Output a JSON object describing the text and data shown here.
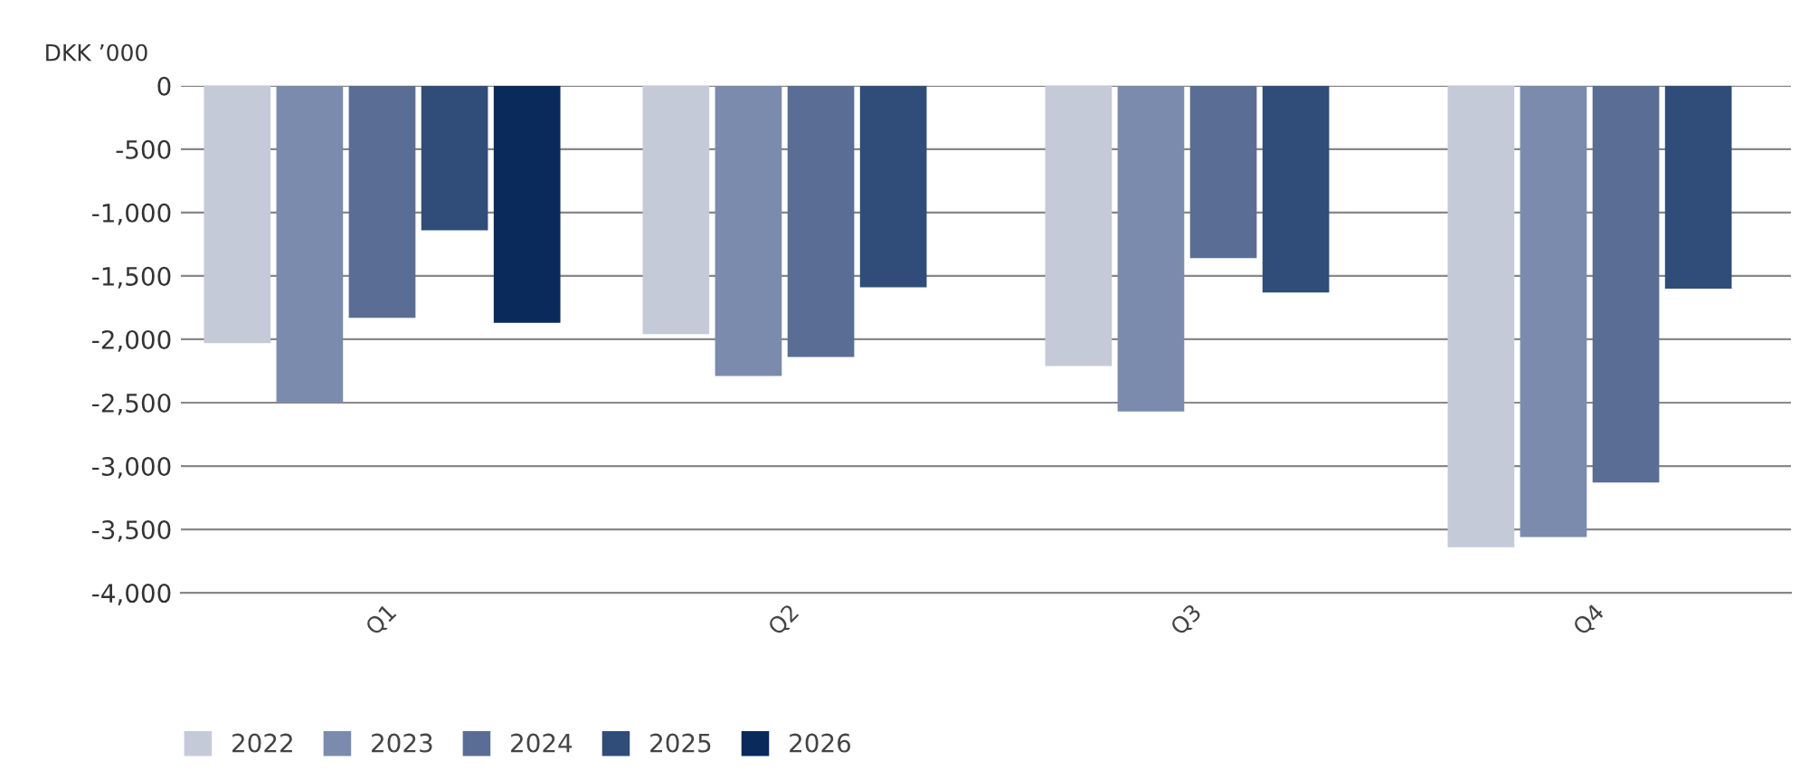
{
  "chart_data": {
    "type": "bar",
    "ylabel": "DKK ’000",
    "categories": [
      "Q1",
      "Q2",
      "Q3",
      "Q4"
    ],
    "series": [
      {
        "name": "2022",
        "color": "#c5cad9",
        "values": [
          -2030,
          -1960,
          -2210,
          -3640
        ]
      },
      {
        "name": "2023",
        "color": "#7b8bad",
        "values": [
          -2500,
          -2290,
          -2570,
          -3560
        ]
      },
      {
        "name": "2024",
        "color": "#5a6d94",
        "values": [
          -1830,
          -2140,
          -1360,
          -3130
        ]
      },
      {
        "name": "2025",
        "color": "#2f4d78",
        "values": [
          -1140,
          -1590,
          -1630,
          -1600
        ]
      },
      {
        "name": "2026",
        "color": "#0a2a5c",
        "values": [
          -1870,
          null,
          null,
          null
        ]
      }
    ],
    "ylim": [
      -4000,
      0
    ],
    "yticks": [
      {
        "value": -4000,
        "label": "-4,000"
      },
      {
        "value": -3500,
        "label": "-3,500"
      },
      {
        "value": -3000,
        "label": "-3,000"
      },
      {
        "value": -2500,
        "label": "-2,500"
      },
      {
        "value": -2000,
        "label": "-2,000"
      },
      {
        "value": -1500,
        "label": "-1,500"
      },
      {
        "value": -1000,
        "label": "-1,000"
      },
      {
        "value": -500,
        "label": "-500"
      },
      0
    ],
    "grid": "y",
    "legend": "bottom left"
  }
}
